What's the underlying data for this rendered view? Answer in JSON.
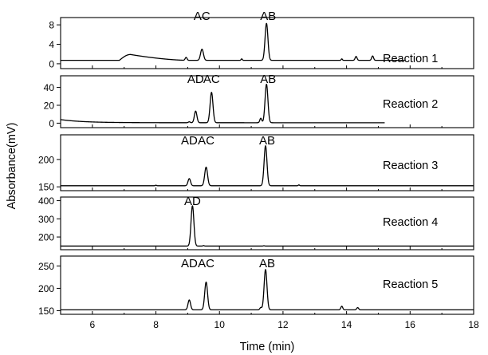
{
  "chart_data": {
    "type": "line",
    "xlabel": "Time (min)",
    "ylabel": "Absorbance(mV)",
    "xlim": [
      5,
      18
    ],
    "x_ticks": [
      6,
      8,
      10,
      12,
      14,
      16,
      18
    ],
    "panels": [
      {
        "name": "Reaction 1",
        "ylim": [
          -1,
          9.5
        ],
        "y_ticks": [
          0,
          4,
          8
        ],
        "x_end": 15.85,
        "baseline": 0.7,
        "shoulder": {
          "start": 6.85,
          "peak_x": 7.2,
          "peak_y": 1.9,
          "end": 9.0
        },
        "peaks": [
          {
            "label": "",
            "x": 8.95,
            "y": 0.6,
            "width": 0.03
          },
          {
            "label": "AC",
            "x": 9.45,
            "y": 2.3,
            "width": 0.045
          },
          {
            "label": "",
            "x": 10.7,
            "y": 0.3,
            "width": 0.02
          },
          {
            "label": "AB",
            "x": 11.48,
            "y": 7.6,
            "width": 0.045
          },
          {
            "label": "",
            "x": 13.85,
            "y": 0.3,
            "width": 0.02
          },
          {
            "label": "",
            "x": 14.3,
            "y": 0.8,
            "width": 0.03
          },
          {
            "label": "",
            "x": 14.82,
            "y": 0.9,
            "width": 0.03
          }
        ]
      },
      {
        "name": "Reaction 2",
        "ylim": [
          -5,
          53
        ],
        "y_ticks": [
          0,
          20,
          40
        ],
        "x_end": 15.2,
        "baseline": 0.5,
        "drift": {
          "start_value": 3.5,
          "decay": 1.4
        },
        "peaks": [
          {
            "label": "",
            "x": 9.05,
            "y": 1.0,
            "width": 0.03
          },
          {
            "label": "AD",
            "x": 9.25,
            "y": 13.0,
            "width": 0.04
          },
          {
            "label": "AC",
            "x": 9.75,
            "y": 34.0,
            "width": 0.045
          },
          {
            "label": "",
            "x": 11.3,
            "y": 5.0,
            "width": 0.03
          },
          {
            "label": "AB",
            "x": 11.48,
            "y": 43.0,
            "width": 0.045
          }
        ]
      },
      {
        "name": "Reaction 3",
        "ylim": [
          143,
          245
        ],
        "y_ticks": [
          150,
          200
        ],
        "x_end": 18,
        "baseline": 152,
        "peaks": [
          {
            "label": "",
            "x": 8.0,
            "y": 1.0,
            "width": 0.02
          },
          {
            "label": "AD",
            "x": 9.05,
            "y": 13.0,
            "width": 0.04
          },
          {
            "label": "AC",
            "x": 9.58,
            "y": 34.0,
            "width": 0.045
          },
          {
            "label": "AB",
            "x": 11.45,
            "y": 73.0,
            "width": 0.045
          },
          {
            "label": "",
            "x": 12.5,
            "y": 1.5,
            "width": 0.02
          }
        ]
      },
      {
        "name": "Reaction 4",
        "ylim": [
          130,
          420
        ],
        "y_ticks": [
          200,
          300,
          400
        ],
        "x_end": 18,
        "baseline": 150,
        "peaks": [
          {
            "label": "AD",
            "x": 9.15,
            "y": 222.0,
            "width": 0.045
          },
          {
            "label": "",
            "x": 9.5,
            "y": 3.0,
            "width": 0.02
          },
          {
            "label": "",
            "x": 11.4,
            "y": 2.0,
            "width": 0.02
          }
        ]
      },
      {
        "name": "Reaction 5",
        "ylim": [
          142,
          272
        ],
        "y_ticks": [
          150,
          200,
          250
        ],
        "x_end": 18,
        "baseline": 152,
        "peaks": [
          {
            "label": "AD",
            "x": 9.05,
            "y": 22.0,
            "width": 0.04
          },
          {
            "label": "AC",
            "x": 9.58,
            "y": 62.0,
            "width": 0.045
          },
          {
            "label": "",
            "x": 11.3,
            "y": 5.0,
            "width": 0.03
          },
          {
            "label": "AB",
            "x": 11.45,
            "y": 90.0,
            "width": 0.045
          },
          {
            "label": "",
            "x": 13.85,
            "y": 8.0,
            "width": 0.03
          },
          {
            "label": "",
            "x": 14.35,
            "y": 5.0,
            "width": 0.03
          }
        ]
      }
    ]
  }
}
